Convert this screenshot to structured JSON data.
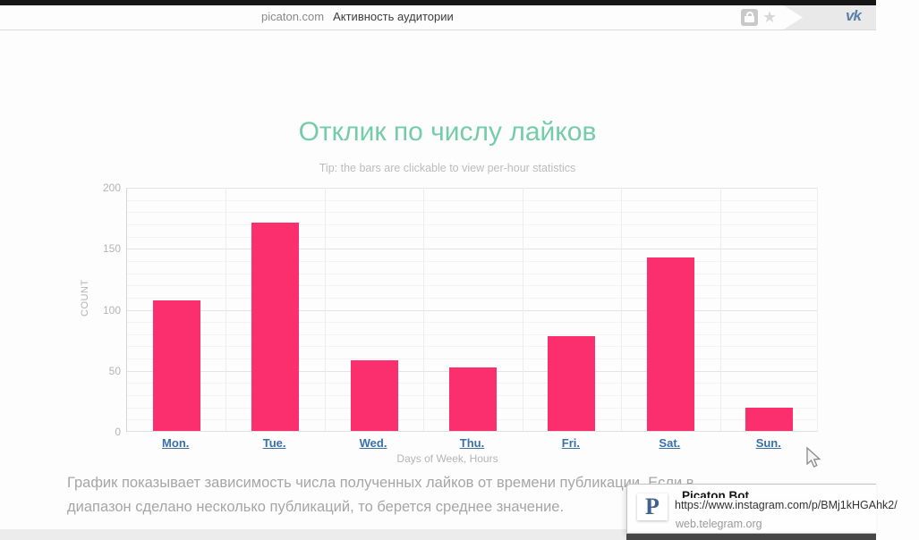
{
  "browser": {
    "url_host": "picaton.com",
    "page_title": "Активность аудитории",
    "vk_logo": "vk",
    "star_glyph": "★"
  },
  "chart": {
    "title": "Отклик по числу лайков",
    "tip": "Tip: the bars are clickable to view per-hour statistics",
    "xlabel": "Days of Week, Hours",
    "ylabel": "COUNT"
  },
  "chart_data": {
    "type": "bar",
    "categories": [
      "Mon.",
      "Tue.",
      "Wed.",
      "Thu.",
      "Fri.",
      "Sat.",
      "Sun."
    ],
    "values": [
      107,
      171,
      58,
      52,
      78,
      142,
      19
    ],
    "title": "Отклик по числу лайков",
    "xlabel": "Days of Week, Hours",
    "ylabel": "COUNT",
    "ylim": [
      0,
      200
    ],
    "yticks": [
      0,
      50,
      100,
      150,
      200
    ],
    "minor_grid_step": 10,
    "grid": true,
    "legend": false,
    "bar_color": "#fb2e6e",
    "x_link_color": "#3a70a8"
  },
  "description": {
    "line1": "График показывает зависимость числа полученных лайков от времени публикации. Если в",
    "line2": "диапазон сделано несколько публикаций, то берется среднее значение."
  },
  "notification": {
    "app_initial": "P",
    "title": "Picaton Bot",
    "url_tooltip": "https://www.instagram.com/p/BMj1kHGAhk2/",
    "source": "web.telegram.org"
  },
  "colors": {
    "bar": "#fb2e6e",
    "title": "#74ccab",
    "day_link": "#3a70a8",
    "vk": "#5d80a8"
  }
}
